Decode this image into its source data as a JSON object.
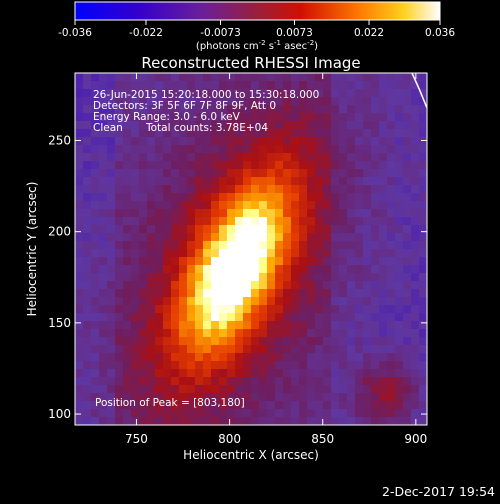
{
  "chart_data": {
    "type": "heatmap",
    "title": "Reconstructed RHESSI Image",
    "xlabel": "Heliocentric X (arcsec)",
    "ylabel": "Heliocentric Y (arcsec)",
    "xlim": [
      717,
      906
    ],
    "ylim": [
      94,
      287
    ],
    "xticks": [
      750,
      800,
      850,
      900
    ],
    "yticks": [
      100,
      150,
      200,
      250
    ],
    "colorbar": {
      "range": [
        -0.036,
        0.036
      ],
      "ticks": [
        "-0.036",
        "-0.022",
        "-0.0073",
        "0.0073",
        "0.022",
        "0.036"
      ],
      "tick_values": [
        -0.036,
        -0.022,
        -0.0073,
        0.0073,
        0.022,
        0.036
      ],
      "label_prefix": "(photons cm",
      "label_sup1": "-2",
      "label_mid": " s",
      "label_sup2": "-1",
      "label_suffix": " asec",
      "label_sup3": "-2",
      "label_end": ")"
    },
    "peak": [
      803,
      180
    ],
    "colors": [
      "#1a1aff",
      "#3d00b0",
      "#5b2a8a",
      "#b01010",
      "#e83a00",
      "#ff9a00",
      "#ffff90",
      "#ffffff"
    ]
  },
  "annotations": {
    "line1": "26-Jun-2015 15:20:18.000 to 15:30:18.000",
    "line2": "Detectors: 3F 5F 6F 7F 8F 9F, Att 0",
    "line3": "Energy Range: 3.0 - 6.0 keV",
    "line4_a": "Clean",
    "line4_b": "Total counts: 3.78E+04",
    "peak_label": "Position of Peak = [803,180]"
  },
  "footer": {
    "date": "2-Dec-2017 19:54"
  }
}
